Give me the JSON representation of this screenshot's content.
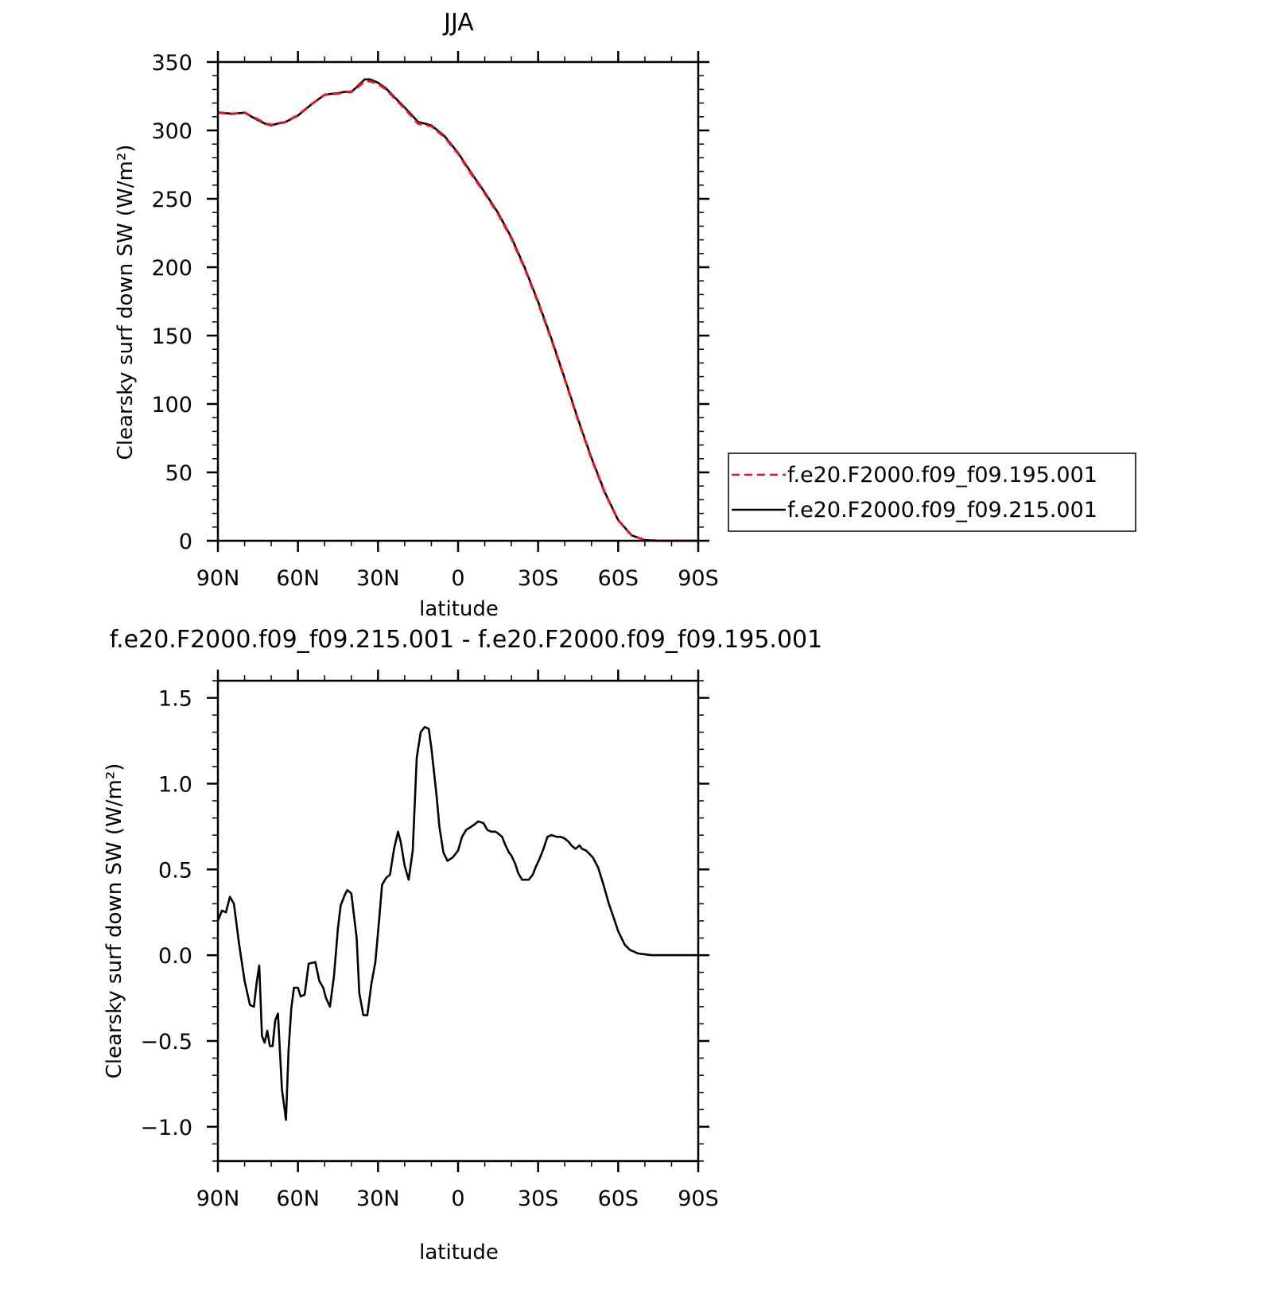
{
  "chart_data": [
    {
      "type": "line",
      "title": "JJA",
      "xlabel": "latitude",
      "ylabel": "Clearsky surf down SW (W/m²)",
      "xlim": [
        90,
        -90
      ],
      "ylim": [
        0,
        350
      ],
      "x_ticks": [
        90,
        60,
        30,
        0,
        -30,
        -60,
        -90
      ],
      "x_tick_labels": [
        "90N",
        "60N",
        "30N",
        "0",
        "30S",
        "60S",
        "90S"
      ],
      "y_ticks": [
        0,
        50,
        100,
        150,
        200,
        250,
        300,
        350
      ],
      "y_tick_labels": [
        "0",
        "50",
        "100",
        "150",
        "200",
        "250",
        "300",
        "350"
      ],
      "legend": {
        "placement": "right",
        "entries": [
          {
            "label": "f.e20.F2000.f09_f09.195.001",
            "color": "#e8141b",
            "dash": "dashed"
          },
          {
            "label": "f.e20.F2000.f09_f09.215.001",
            "color": "#000000",
            "dash": "solid"
          }
        ]
      },
      "series": [
        {
          "name": "f.e20.F2000.f09_f09.195.001",
          "color": "#e8141b",
          "style": "dashed",
          "x": [
            90,
            85,
            80,
            75,
            72,
            70,
            68,
            65,
            60,
            55,
            50,
            45,
            42,
            40,
            38,
            35,
            33,
            30,
            27,
            25,
            20,
            15,
            10,
            5,
            0,
            -5,
            -10,
            -15,
            -20,
            -25,
            -30,
            -35,
            -40,
            -45,
            -50,
            -55,
            -60,
            -65,
            -70,
            -75,
            -80,
            -85,
            -90
          ],
          "y": [
            313,
            312,
            313,
            308,
            305,
            304,
            305,
            306,
            311,
            319,
            326,
            327,
            328,
            328,
            331,
            336,
            336,
            334,
            330,
            326,
            316,
            305,
            303,
            295,
            283,
            268,
            254,
            239,
            221,
            199,
            174,
            147,
            118,
            88,
            60,
            35,
            15,
            4,
            0.5,
            0,
            0,
            0,
            0
          ]
        },
        {
          "name": "f.e20.F2000.f09_f09.215.001",
          "color": "#000000",
          "style": "solid",
          "x": [
            90,
            85,
            80,
            75,
            72,
            70,
            68,
            65,
            60,
            55,
            50,
            45,
            42,
            40,
            38,
            35,
            33,
            30,
            27,
            25,
            20,
            15,
            10,
            5,
            0,
            -5,
            -10,
            -15,
            -20,
            -25,
            -30,
            -35,
            -40,
            -45,
            -50,
            -55,
            -60,
            -65,
            -70,
            -75,
            -80,
            -85,
            -90
          ],
          "y": [
            313.2,
            312.2,
            312.9,
            307.5,
            304.7,
            303.6,
            304.8,
            305.8,
            310.9,
            318.9,
            326.1,
            327.3,
            328.3,
            328.3,
            331.6,
            337.3,
            337.3,
            334.9,
            330.7,
            326.6,
            316.8,
            306.3,
            303.7,
            295.7,
            283.6,
            268.8,
            254.7,
            239.7,
            221.7,
            199.6,
            174.7,
            147.7,
            118.6,
            88.6,
            60.5,
            35.4,
            15.2,
            4.0,
            0.5,
            0,
            0,
            0,
            0
          ]
        }
      ]
    },
    {
      "type": "line",
      "title": "f.e20.F2000.f09_f09.215.001 - f.e20.F2000.f09_f09.195.001",
      "xlabel": "latitude",
      "ylabel": "Clearsky surf down SW (W/m²)",
      "xlim": [
        90,
        -90
      ],
      "ylim": [
        -1.2,
        1.6
      ],
      "x_ticks": [
        90,
        60,
        30,
        0,
        -30,
        -60,
        -90
      ],
      "x_tick_labels": [
        "90N",
        "60N",
        "30N",
        "0",
        "30S",
        "60S",
        "90S"
      ],
      "y_ticks": [
        -1.0,
        -0.5,
        0.0,
        0.5,
        1.0,
        1.5
      ],
      "y_tick_labels": [
        "−1.0",
        "−0.5",
        "0.0",
        "0.5",
        "1.0",
        "1.5"
      ],
      "series": [
        {
          "color": "#000000",
          "style": "solid",
          "x": [
            90,
            88.5,
            87,
            85.5,
            84,
            82,
            80,
            78,
            76.5,
            75.5,
            74.5,
            73.5,
            72.5,
            71.5,
            70.5,
            69.5,
            68.5,
            67.5,
            66,
            64.5,
            63.5,
            62.5,
            61.5,
            60,
            59,
            57.5,
            56,
            53.5,
            52,
            50.5,
            49.5,
            48,
            46.5,
            45,
            44,
            42.5,
            41.5,
            40,
            38,
            37,
            35.5,
            34,
            32.5,
            31,
            29.5,
            28.5,
            27,
            25.5,
            24,
            22.5,
            21.5,
            20,
            18.5,
            17,
            15.5,
            14,
            12.5,
            11,
            10,
            8,
            7,
            5.5,
            4,
            2,
            0,
            -1.5,
            -3,
            -5,
            -6,
            -7.5,
            -9.5,
            -11,
            -12.5,
            -14,
            -15,
            -16.5,
            -17.5,
            -19,
            -20,
            -21.5,
            -22.5,
            -24,
            -26.5,
            -28,
            -29,
            -30.5,
            -32,
            -33.5,
            -35,
            -37,
            -38.5,
            -40,
            -41.5,
            -42.5,
            -44,
            -45.5,
            -46.5,
            -48,
            -50.5,
            -52.5,
            -54.5,
            -56.5,
            -58.5,
            -60,
            -62.5,
            -64.5,
            -66,
            -67.5,
            -70,
            -72.5,
            -75,
            -77.5,
            -80,
            -85,
            -90
          ],
          "y": [
            0.2,
            0.26,
            0.25,
            0.34,
            0.3,
            0.06,
            -0.15,
            -0.29,
            -0.3,
            -0.16,
            -0.06,
            -0.47,
            -0.51,
            -0.44,
            -0.53,
            -0.53,
            -0.38,
            -0.34,
            -0.78,
            -0.96,
            -0.55,
            -0.31,
            -0.19,
            -0.19,
            -0.24,
            -0.23,
            -0.05,
            -0.04,
            -0.15,
            -0.19,
            -0.25,
            -0.3,
            -0.12,
            0.16,
            0.29,
            0.35,
            0.38,
            0.36,
            0.1,
            -0.22,
            -0.35,
            -0.35,
            -0.17,
            -0.04,
            0.22,
            0.41,
            0.45,
            0.47,
            0.62,
            0.72,
            0.66,
            0.52,
            0.44,
            0.61,
            1.15,
            1.3,
            1.33,
            1.32,
            1.21,
            0.92,
            0.75,
            0.6,
            0.55,
            0.57,
            0.61,
            0.69,
            0.73,
            0.75,
            0.76,
            0.78,
            0.77,
            0.73,
            0.72,
            0.72,
            0.71,
            0.69,
            0.65,
            0.6,
            0.58,
            0.53,
            0.48,
            0.44,
            0.44,
            0.47,
            0.51,
            0.56,
            0.62,
            0.69,
            0.7,
            0.69,
            0.69,
            0.68,
            0.66,
            0.64,
            0.62,
            0.64,
            0.62,
            0.61,
            0.57,
            0.51,
            0.41,
            0.3,
            0.21,
            0.14,
            0.06,
            0.03,
            0.02,
            0.01,
            0.005,
            0,
            0,
            0,
            0,
            0,
            0
          ]
        }
      ]
    }
  ]
}
